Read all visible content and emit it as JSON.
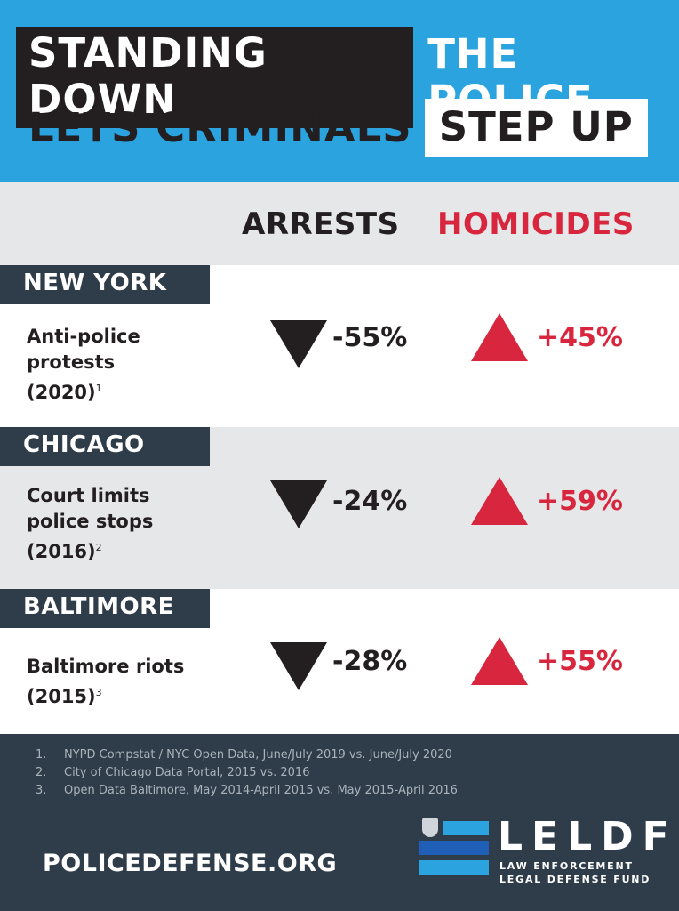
{
  "header": {
    "line1_boxed": "STANDING DOWN",
    "line1_plain": "THE POLICE",
    "line2_plain": "LETS CRIMINALS",
    "line2_boxed": "STEP UP"
  },
  "columns": {
    "arrests": "ARRESTS",
    "homicides": "HOMICIDES"
  },
  "rows": [
    {
      "city": "NEW YORK",
      "desc_lines": [
        "Anti-police",
        "protests",
        "(2020)"
      ],
      "footnote": "1",
      "arrests": "-55%",
      "homicides": "+45%"
    },
    {
      "city": "CHICAGO",
      "desc_lines": [
        "Court limits",
        "police stops",
        "(2016)"
      ],
      "footnote": "2",
      "arrests": "-24%",
      "homicides": "+59%"
    },
    {
      "city": "BALTIMORE",
      "desc_lines": [
        "Baltimore riots",
        "(2015)"
      ],
      "footnote": "3",
      "arrests": "-28%",
      "homicides": "+55%"
    }
  ],
  "sources": [
    {
      "num": "1.",
      "text": "NYPD Compstat / NYC Open Data, June/July 2019 vs. June/July 2020"
    },
    {
      "num": "2.",
      "text": "City of Chicago Data Portal, 2015 vs. 2016"
    },
    {
      "num": "3.",
      "text": "Open Data Baltimore, May 2014-April 2015 vs. May 2015-April 2016"
    }
  ],
  "footer": {
    "website": "POLICEDEFENSE.ORG",
    "logo_title": "LELDF",
    "logo_sub1": "LAW ENFORCEMENT",
    "logo_sub2": "LEGAL DEFENSE FUND"
  },
  "colors": {
    "header_blue": "#2aa3df",
    "dark": "#231f20",
    "red": "#d7263d",
    "navy": "#2e3d49",
    "light_gray": "#e6e7e8"
  }
}
